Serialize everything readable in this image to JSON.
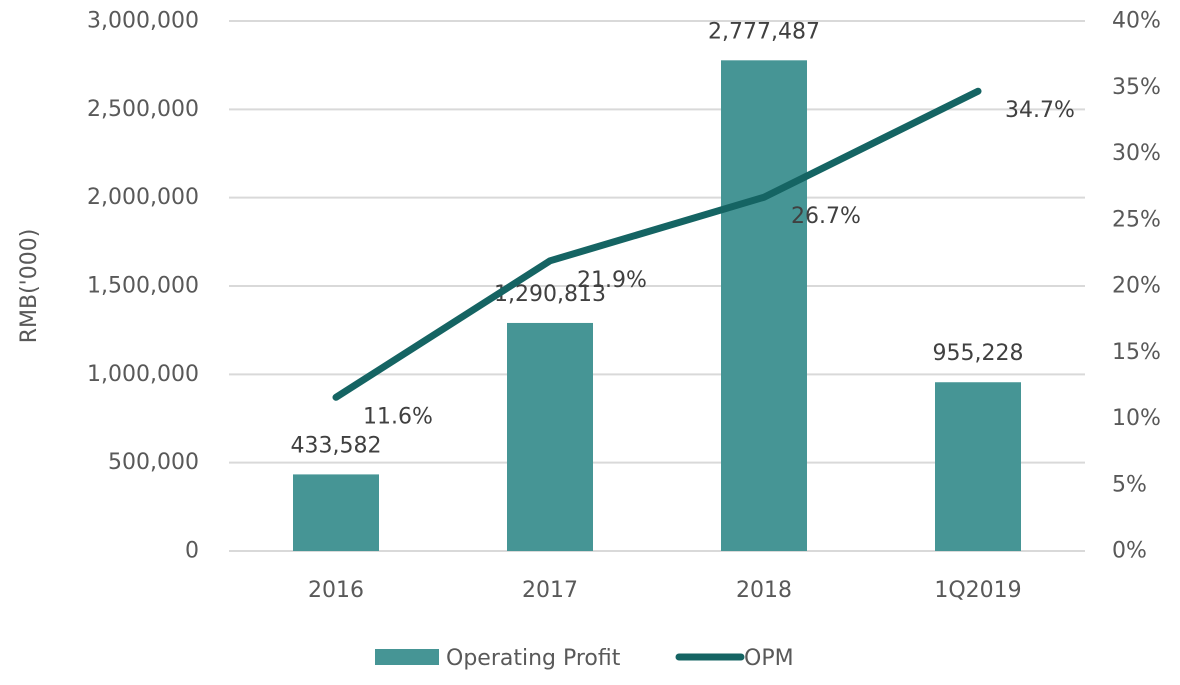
{
  "chart_data": {
    "type": "bar+line",
    "categories": [
      "2016",
      "2017",
      "2018",
      "1Q2019"
    ],
    "series": [
      {
        "name": "Operating Profit",
        "type": "bar",
        "axis": "left",
        "values": [
          433582,
          1290813,
          2777487,
          955228
        ],
        "labels": [
          "433,582",
          "1,290,813",
          "2,777,487",
          "955,228"
        ],
        "color": "#469595"
      },
      {
        "name": "OPM",
        "type": "line",
        "axis": "right",
        "values": [
          11.6,
          21.9,
          26.7,
          34.7
        ],
        "labels": [
          "11.6%",
          "21.9%",
          "26.7%",
          "34.7%"
        ],
        "color": "#156463"
      }
    ],
    "ylabel": "RMB('000)",
    "ylim": [
      0,
      3000000
    ],
    "y_ticks": [
      "0",
      "500,000",
      "1,000,000",
      "1,500,000",
      "2,000,000",
      "2,500,000",
      "3,000,000"
    ],
    "y_tick_values": [
      0,
      500000,
      1000000,
      1500000,
      2000000,
      2500000,
      3000000
    ],
    "y2lim": [
      0,
      40
    ],
    "y2_ticks": [
      "0%",
      "5%",
      "10%",
      "15%",
      "20%",
      "25%",
      "30%",
      "35%",
      "40%"
    ],
    "y2_tick_values": [
      0,
      5,
      10,
      15,
      20,
      25,
      30,
      35,
      40
    ],
    "grid": true,
    "gridline_color": "#d9d9d9",
    "legend": {
      "position": "bottom",
      "entries": [
        "Operating Profit",
        "OPM"
      ]
    }
  }
}
